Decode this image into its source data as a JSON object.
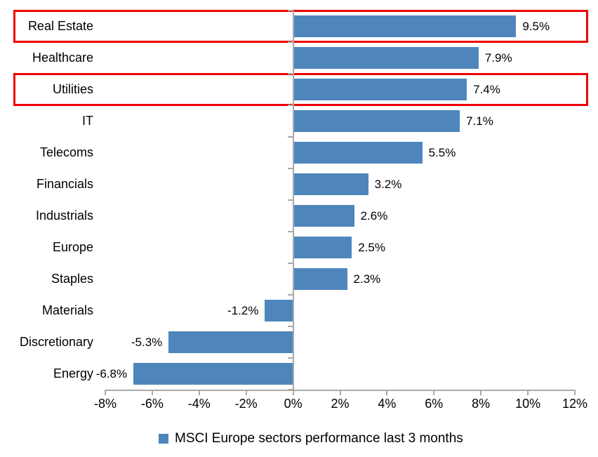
{
  "chart_data": {
    "type": "bar",
    "orientation": "horizontal",
    "title": "",
    "categories": [
      "Real Estate",
      "Healthcare",
      "Utilities",
      "IT",
      "Telecoms",
      "Financials",
      "Industrials",
      "Europe",
      "Staples",
      "Materials",
      "Discretionary",
      "Energy"
    ],
    "values": [
      9.5,
      7.9,
      7.4,
      7.1,
      5.5,
      3.2,
      2.6,
      2.5,
      2.3,
      -1.2,
      -5.3,
      -6.8
    ],
    "value_labels": [
      "9.5%",
      "7.9%",
      "7.4%",
      "7.1%",
      "5.5%",
      "3.2%",
      "2.6%",
      "2.5%",
      "2.3%",
      "-1.2%",
      "-5.3%",
      "-6.8%"
    ],
    "series_name": "MSCI Europe sectors performance last 3 months",
    "x_axis": {
      "min": -8,
      "max": 12,
      "step": 2,
      "tick_labels": [
        "-8%",
        "-6%",
        "-4%",
        "-2%",
        "0%",
        "2%",
        "4%",
        "6%",
        "8%",
        "10%",
        "12%"
      ]
    },
    "grid": false,
    "legend_position": "bottom-center",
    "highlighted_categories": [
      "Real Estate",
      "Utilities"
    ],
    "colors": {
      "bar": "#4e86bc",
      "highlight_box": "#ee0000",
      "axis": "#a9a9a9",
      "text": "#000000"
    }
  },
  "legend": {
    "label": "MSCI Europe sectors performance last 3 months",
    "swatch_color": "#4e86bc"
  }
}
